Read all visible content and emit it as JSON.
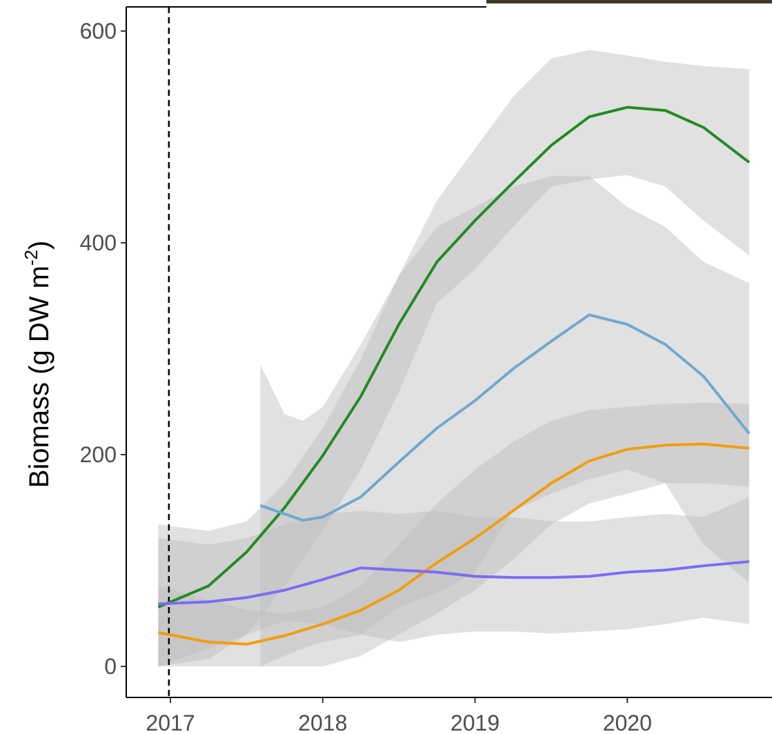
{
  "chart_data": {
    "type": "line",
    "y_label": "Biomass (g DW m",
    "y_label_sup": "-2",
    "y_label_end": ")",
    "xlim": [
      2016.71,
      2020.95
    ],
    "ylim": [
      -29.3,
      622.8
    ],
    "xticks": [
      2017,
      2018,
      2019,
      2020
    ],
    "yticks": [
      0,
      200,
      400,
      600
    ],
    "vline": 2016.99,
    "band_color": "#bdbdbd",
    "series": [
      {
        "color": "#228b22",
        "x": [
          2016.92,
          2017.25,
          2017.5,
          2017.75,
          2018,
          2018.25,
          2018.5,
          2018.75,
          2019,
          2019.25,
          2019.5,
          2019.75,
          2020,
          2020.25,
          2020.5,
          2020.8
        ],
        "values": [
          56,
          76,
          108,
          150,
          199,
          255,
          323,
          382,
          421,
          457,
          492,
          519,
          528,
          525,
          509,
          476
        ],
        "upper": [
          134,
          128,
          137,
          173,
          225,
          290,
          369,
          440,
          489,
          538,
          574,
          582,
          577,
          571,
          567,
          564
        ],
        "lower": [
          0,
          7,
          30,
          76,
          128,
          186,
          259,
          343,
          375,
          415,
          453,
          460,
          464,
          453,
          421,
          388
        ]
      },
      {
        "color": "#6fa8d0",
        "x": [
          2017.59,
          2017.75,
          2017.87,
          2018,
          2018.25,
          2018.5,
          2018.75,
          2019,
          2019.25,
          2019.5,
          2019.75,
          2020,
          2020.25,
          2020.5,
          2020.8
        ],
        "values": [
          152,
          144,
          138,
          141,
          160,
          193,
          225,
          251,
          281,
          307,
          332,
          323,
          304,
          274,
          220
        ],
        "upper": [
          285,
          238,
          232,
          245,
          304,
          369,
          415,
          434,
          453,
          463,
          463,
          434,
          415,
          382,
          362
        ],
        "lower": [
          0,
          10,
          17,
          23,
          30,
          56,
          69,
          89,
          147,
          163,
          177,
          186,
          173,
          115,
          79
        ]
      },
      {
        "color": "#f29d0a",
        "x": [
          2016.92,
          2017.25,
          2017.5,
          2017.75,
          2018,
          2018.25,
          2018.5,
          2018.75,
          2019,
          2019.25,
          2019.5,
          2019.75,
          2020,
          2020.25,
          2020.5,
          2020.8
        ],
        "values": [
          32,
          23,
          21,
          29,
          40,
          53,
          72,
          98,
          121,
          147,
          173,
          194,
          205,
          209,
          210,
          206
        ],
        "upper": [
          76,
          63,
          53,
          50,
          56,
          76,
          115,
          154,
          186,
          212,
          232,
          242,
          245,
          248,
          249,
          248
        ],
        "lower": [
          0,
          0,
          0,
          0,
          0,
          10,
          30,
          50,
          72,
          101,
          134,
          154,
          163,
          173,
          173,
          170
        ]
      },
      {
        "color": "#7b6cf6",
        "x": [
          2016.92,
          2017.25,
          2017.5,
          2017.75,
          2018,
          2018.25,
          2018.5,
          2018.75,
          2019,
          2019.25,
          2019.5,
          2019.75,
          2020,
          2020.25,
          2020.5,
          2020.8
        ],
        "values": [
          59,
          61,
          65,
          72,
          82,
          93,
          91,
          89,
          85,
          84,
          84,
          85,
          89,
          91,
          95,
          99
        ],
        "upper": [
          121,
          115,
          121,
          134,
          144,
          147,
          144,
          147,
          141,
          141,
          137,
          137,
          141,
          144,
          141,
          160
        ],
        "lower": [
          0,
          17,
          30,
          43,
          40,
          30,
          23,
          30,
          33,
          33,
          31,
          33,
          35,
          40,
          46,
          40
        ]
      }
    ]
  }
}
